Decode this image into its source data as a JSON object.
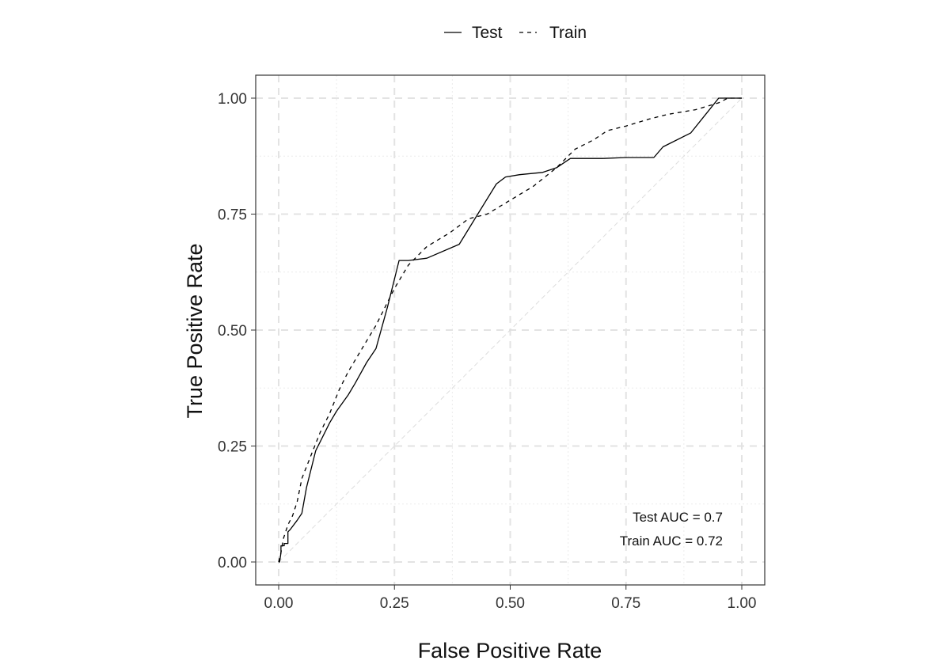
{
  "chart_data": {
    "type": "line",
    "xlabel": "False Positive Rate",
    "ylabel": "True Positive Rate",
    "xlim": [
      0,
      1
    ],
    "ylim": [
      0,
      1
    ],
    "x_ticks": [
      "0.00",
      "0.25",
      "0.50",
      "0.75",
      "1.00"
    ],
    "y_ticks": [
      "0.00",
      "0.25",
      "0.50",
      "0.75",
      "1.00"
    ],
    "grid": true,
    "legend_position": "top",
    "reference_line": {
      "x": [
        0,
        1
      ],
      "y": [
        0,
        1
      ],
      "style": "dashed",
      "color": "#dddddd"
    },
    "annotations": [
      "Test AUC = 0.7",
      "Train AUC = 0.72"
    ],
    "series": [
      {
        "name": "Test",
        "style": "solid",
        "color": "#000000",
        "x": [
          0.0,
          0.002,
          0.005,
          0.005,
          0.012,
          0.012,
          0.02,
          0.02,
          0.025,
          0.04,
          0.05,
          0.06,
          0.08,
          0.095,
          0.11,
          0.125,
          0.15,
          0.165,
          0.19,
          0.21,
          0.235,
          0.26,
          0.265,
          0.28,
          0.32,
          0.39,
          0.43,
          0.47,
          0.49,
          0.52,
          0.57,
          0.6,
          0.63,
          0.7,
          0.75,
          0.81,
          0.83,
          0.89,
          0.95,
          0.96,
          1.0
        ],
        "y": [
          0.0,
          0.0,
          0.02,
          0.035,
          0.035,
          0.04,
          0.04,
          0.065,
          0.07,
          0.09,
          0.105,
          0.16,
          0.24,
          0.27,
          0.3,
          0.325,
          0.36,
          0.385,
          0.43,
          0.46,
          0.55,
          0.65,
          0.65,
          0.65,
          0.655,
          0.685,
          0.75,
          0.815,
          0.83,
          0.835,
          0.84,
          0.85,
          0.87,
          0.87,
          0.872,
          0.872,
          0.895,
          0.925,
          1.0,
          1.0,
          1.0
        ]
      },
      {
        "name": "Train",
        "style": "dashed",
        "color": "#000000",
        "x": [
          0.0,
          0.005,
          0.01,
          0.02,
          0.03,
          0.04,
          0.05,
          0.07,
          0.09,
          0.11,
          0.13,
          0.15,
          0.18,
          0.21,
          0.25,
          0.28,
          0.32,
          0.37,
          0.41,
          0.45,
          0.5,
          0.55,
          0.6,
          0.64,
          0.68,
          0.71,
          0.75,
          0.8,
          0.84,
          0.9,
          0.95,
          0.97,
          1.0
        ],
        "y": [
          0.0,
          0.02,
          0.05,
          0.08,
          0.1,
          0.13,
          0.18,
          0.23,
          0.28,
          0.32,
          0.37,
          0.41,
          0.46,
          0.51,
          0.59,
          0.64,
          0.68,
          0.71,
          0.74,
          0.75,
          0.78,
          0.81,
          0.85,
          0.89,
          0.91,
          0.93,
          0.94,
          0.955,
          0.965,
          0.975,
          0.99,
          1.0,
          1.0
        ]
      }
    ]
  }
}
